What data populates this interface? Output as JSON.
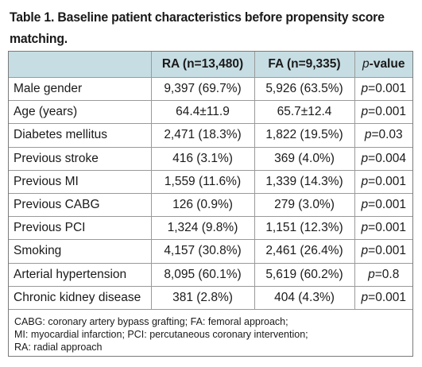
{
  "caption": {
    "line1": "Table 1. Baseline patient characteristics before propensity score",
    "line2": "matching."
  },
  "table": {
    "headers": {
      "characteristic": "",
      "ra": "RA (n=13,480)",
      "fa": "FA (n=9,335)",
      "pvalue_italic": "p",
      "pvalue_suffix": "-value"
    },
    "rows": [
      {
        "label": "Male gender",
        "ra": "9,397 (69.7%)",
        "fa": "5,926 (63.5%)",
        "p_prefix": "p",
        "p_value": "=0.001"
      },
      {
        "label": "Age (years)",
        "ra": "64.4±11.9",
        "fa": "65.7±12.4",
        "p_prefix": "p",
        "p_value": "=0.001"
      },
      {
        "label": "Diabetes mellitus",
        "ra": "2,471 (18.3%)",
        "fa": "1,822 (19.5%)",
        "p_prefix": "p",
        "p_value": "=0.03"
      },
      {
        "label": "Previous stroke",
        "ra": "416 (3.1%)",
        "fa": "369 (4.0%)",
        "p_prefix": "p",
        "p_value": "=0.004"
      },
      {
        "label": "Previous MI",
        "ra": "1,559 (11.6%)",
        "fa": "1,339 (14.3%)",
        "p_prefix": "p",
        "p_value": "=0.001"
      },
      {
        "label": "Previous CABG",
        "ra": "126 (0.9%)",
        "fa": "279 (3.0%)",
        "p_prefix": "p",
        "p_value": "=0.001"
      },
      {
        "label": "Previous PCI",
        "ra": "1,324 (9.8%)",
        "fa": "1,151 (12.3%)",
        "p_prefix": "p",
        "p_value": "=0.001"
      },
      {
        "label": "Smoking",
        "ra": "4,157 (30.8%)",
        "fa": "2,461 (26.4%)",
        "p_prefix": "p",
        "p_value": "=0.001"
      },
      {
        "label": "Arterial hypertension",
        "ra": "8,095 (60.1%)",
        "fa": "5,619 (60.2%)",
        "p_prefix": "p",
        "p_value": "=0.8"
      },
      {
        "label": "Chronic kidney disease",
        "ra": "381 (2.8%)",
        "fa": "404 (4.3%)",
        "p_prefix": "p",
        "p_value": "=0.001"
      }
    ]
  },
  "footnote": {
    "line1": "CABG: coronary artery bypass grafting; FA: femoral approach;",
    "line2": "MI: myocardial infarction; PCI: percutaneous coronary intervention;",
    "line3": "RA: radial approach"
  },
  "colors": {
    "header_background": "#c6dde3",
    "border": "#7a7a7a",
    "text": "#1a1a1a"
  }
}
